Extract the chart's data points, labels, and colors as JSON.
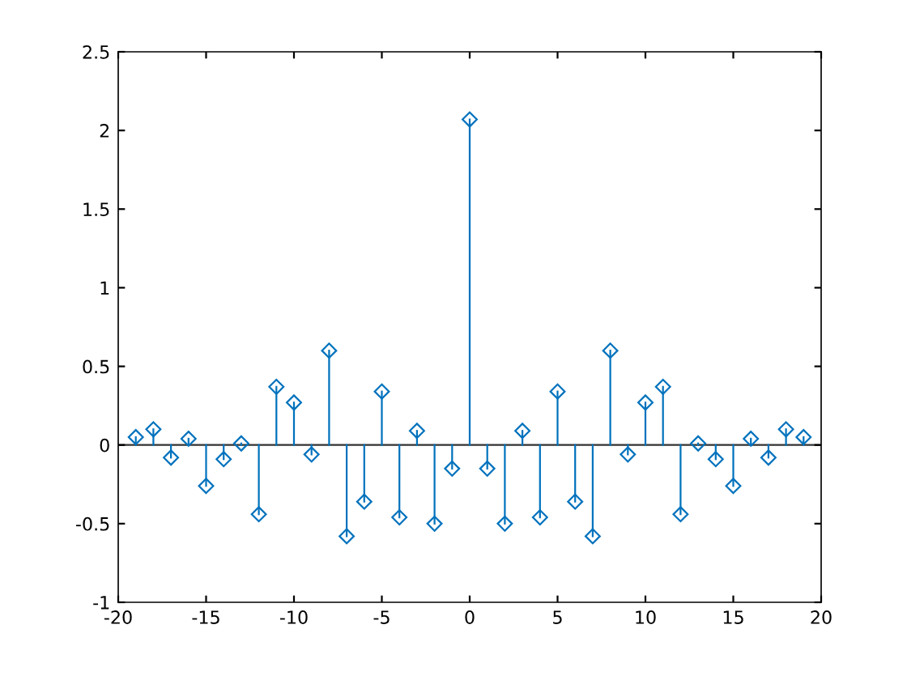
{
  "chart_data": {
    "type": "lollipop",
    "x": [
      -19,
      -18,
      -17,
      -16,
      -15,
      -14,
      -13,
      -12,
      -11,
      -10,
      -9,
      -8,
      -7,
      -6,
      -5,
      -4,
      -3,
      -2,
      -1,
      0,
      1,
      2,
      3,
      4,
      5,
      6,
      7,
      8,
      9,
      10,
      11,
      12,
      13,
      14,
      15,
      16,
      17,
      18,
      19
    ],
    "values": [
      0.05,
      0.1,
      -0.08,
      0.04,
      -0.26,
      -0.09,
      0.01,
      -0.44,
      0.37,
      0.27,
      -0.06,
      0.6,
      -0.58,
      -0.36,
      0.34,
      -0.46,
      0.09,
      -0.5,
      -0.15,
      2.07,
      -0.15,
      -0.5,
      0.09,
      -0.46,
      0.34,
      -0.36,
      -0.58,
      0.6,
      -0.06,
      0.27,
      0.37,
      -0.44,
      0.01,
      -0.09,
      -0.26,
      0.04,
      -0.08,
      0.1,
      0.05
    ],
    "color": "#0072bd",
    "marker": "diamond",
    "xlim": [
      -20,
      20
    ],
    "xticks": [
      -20,
      -15,
      -10,
      -5,
      0,
      5,
      10,
      15,
      20
    ],
    "ylim": [
      -1,
      2.5
    ],
    "yticks": [
      -1,
      -0.5,
      0,
      0.5,
      1,
      1.5,
      2,
      2.5
    ],
    "ref_lines": [
      {
        "axis": "y",
        "value": 0,
        "color": "#333333"
      }
    ],
    "grid": false,
    "legend": false
  }
}
